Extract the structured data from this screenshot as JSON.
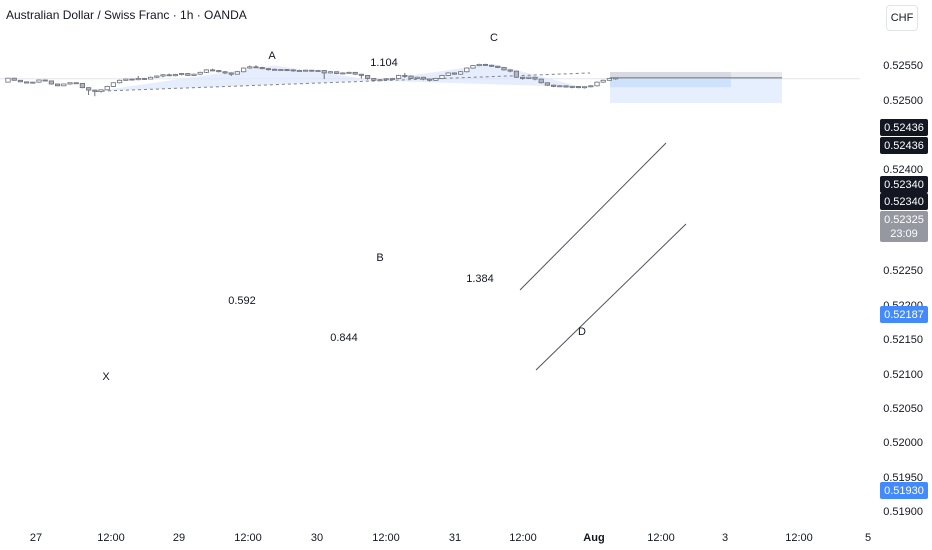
{
  "header": {
    "title": "Australian Dollar / Swiss Franc · 1h · OANDA",
    "currency_button": "CHF"
  },
  "colors": {
    "up_candle": "#ffffff",
    "down_candle": "#b2b5be",
    "candle_outline": "#6b6f7a",
    "pattern_fill": "#dbe6fb",
    "stop_zone": "#d1d4dc",
    "target_zone": "#cfe2fc",
    "label_dark": "#131722",
    "label_blue": "#2962ff"
  },
  "chart_data": {
    "type": "candlestick",
    "ylim": [
      0.5188,
      0.5262
    ],
    "price_ticks": [
      "0.52550",
      "0.52500",
      "0.52400",
      "0.52250",
      "0.52150",
      "0.52100",
      "0.52050",
      "0.52000",
      "0.51950",
      "0.51900"
    ],
    "partially_hidden_ticks": [
      "0.52200"
    ],
    "time_labels": [
      "27",
      "12:00",
      "29",
      "12:00",
      "30",
      "12:00",
      "31",
      "12:00",
      "Aug",
      "12:00",
      "3",
      "12:00",
      "5"
    ],
    "price_labels": [
      {
        "price": 0.52436,
        "text": "0.52436",
        "style": "dark"
      },
      {
        "price": 0.52436,
        "text": "0.52436",
        "style": "dark"
      },
      {
        "price": 0.5234,
        "text": "0.52340",
        "style": "dark"
      },
      {
        "price": 0.5234,
        "text": "0.52340",
        "style": "dark"
      },
      {
        "price": 0.52325,
        "text": "0.52325",
        "style": "gray",
        "countdown": "23:09"
      },
      {
        "price": 0.52187,
        "text": "0.52187",
        "style": "blue"
      },
      {
        "price": 0.5193,
        "text": "0.51930",
        "style": "blue"
      }
    ],
    "pattern_points": [
      {
        "label": "X",
        "price": 0.5212
      },
      {
        "label": "A",
        "price": 0.52544
      },
      {
        "label": "B",
        "price": 0.52295
      },
      {
        "label": "C",
        "price": 0.5257
      },
      {
        "label": "D",
        "price": 0.52188
      }
    ],
    "ratios": [
      "0.592",
      "1.104",
      "0.844",
      "1.384"
    ],
    "position": {
      "entry": 0.5234,
      "stop": 0.52436,
      "target": 0.5193
    },
    "candles": [
      [
        0.5227,
        0.52335,
        0.52268,
        0.52336
      ],
      [
        0.52335,
        0.523,
        0.52295,
        0.52338
      ],
      [
        0.523,
        0.52275,
        0.5227,
        0.52305
      ],
      [
        0.52275,
        0.52255,
        0.5225,
        0.5228
      ],
      [
        0.52255,
        0.5227,
        0.52245,
        0.52275
      ],
      [
        0.5227,
        0.52305,
        0.5226,
        0.5231
      ],
      [
        0.52305,
        0.5229,
        0.52285,
        0.5231
      ],
      [
        0.5229,
        0.5224,
        0.5223,
        0.52295
      ],
      [
        0.5224,
        0.5221,
        0.52205,
        0.52245
      ],
      [
        0.5221,
        0.5224,
        0.52205,
        0.52245
      ],
      [
        0.5224,
        0.5226,
        0.5223,
        0.52265
      ],
      [
        0.5226,
        0.5225,
        0.52245,
        0.52265
      ],
      [
        0.5225,
        0.5218,
        0.5217,
        0.52255
      ],
      [
        0.5218,
        0.5214,
        0.5206,
        0.52185
      ],
      [
        0.5214,
        0.5212,
        0.5204,
        0.5215
      ],
      [
        0.5212,
        0.52145,
        0.521,
        0.5215
      ],
      [
        0.52145,
        0.522,
        0.5214,
        0.5221
      ],
      [
        0.522,
        0.5226,
        0.5219,
        0.52265
      ],
      [
        0.5226,
        0.523,
        0.5225,
        0.5231
      ],
      [
        0.523,
        0.5232,
        0.5229,
        0.5233
      ],
      [
        0.5232,
        0.5231,
        0.523,
        0.5233
      ],
      [
        0.5231,
        0.5233,
        0.523,
        0.5237
      ],
      [
        0.5233,
        0.5232,
        0.5231,
        0.5234
      ],
      [
        0.5232,
        0.5235,
        0.52315,
        0.5236
      ],
      [
        0.5235,
        0.5237,
        0.5234,
        0.5238
      ],
      [
        0.5237,
        0.5239,
        0.5235,
        0.524
      ],
      [
        0.5239,
        0.52375,
        0.5237,
        0.5241
      ],
      [
        0.52375,
        0.52395,
        0.52365,
        0.52405
      ],
      [
        0.52395,
        0.5241,
        0.5238,
        0.5242
      ],
      [
        0.5241,
        0.5238,
        0.52375,
        0.5242
      ],
      [
        0.5238,
        0.524,
        0.5237,
        0.5241
      ],
      [
        0.524,
        0.5243,
        0.5239,
        0.5244
      ],
      [
        0.5243,
        0.5247,
        0.5242,
        0.5248
      ],
      [
        0.5247,
        0.5246,
        0.5245,
        0.5249
      ],
      [
        0.5246,
        0.5244,
        0.5243,
        0.5247
      ],
      [
        0.5244,
        0.5242,
        0.524,
        0.5245
      ],
      [
        0.5242,
        0.524,
        0.5237,
        0.5243
      ],
      [
        0.524,
        0.5244,
        0.52395,
        0.5245
      ],
      [
        0.5244,
        0.525,
        0.5243,
        0.5251
      ],
      [
        0.525,
        0.5252,
        0.5249,
        0.5254
      ],
      [
        0.5252,
        0.5251,
        0.525,
        0.52545
      ],
      [
        0.5251,
        0.5249,
        0.5248,
        0.5252
      ],
      [
        0.5249,
        0.5248,
        0.5246,
        0.525
      ],
      [
        0.5248,
        0.5247,
        0.5246,
        0.5249
      ],
      [
        0.5247,
        0.52475,
        0.5246,
        0.5248
      ],
      [
        0.52475,
        0.5247,
        0.5245,
        0.52485
      ],
      [
        0.5247,
        0.52455,
        0.5244,
        0.5248
      ],
      [
        0.52455,
        0.5246,
        0.52445,
        0.5247
      ],
      [
        0.5246,
        0.52465,
        0.5245,
        0.52475
      ],
      [
        0.52465,
        0.5245,
        0.5244,
        0.5247
      ],
      [
        0.5245,
        0.5246,
        0.5244,
        0.5247
      ],
      [
        0.5246,
        0.5242,
        0.5232,
        0.52465
      ],
      [
        0.5242,
        0.5244,
        0.5241,
        0.5245
      ],
      [
        0.5244,
        0.5241,
        0.524,
        0.52445
      ],
      [
        0.5241,
        0.5242,
        0.524,
        0.5243
      ],
      [
        0.5242,
        0.5243,
        0.5241,
        0.5244
      ],
      [
        0.5243,
        0.524,
        0.5239,
        0.52435
      ],
      [
        0.524,
        0.5238,
        0.5233,
        0.52405
      ],
      [
        0.5238,
        0.5233,
        0.5231,
        0.52385
      ],
      [
        0.5233,
        0.523,
        0.5229,
        0.52335
      ],
      [
        0.523,
        0.5231,
        0.5229,
        0.5232
      ],
      [
        0.5231,
        0.52325,
        0.52295,
        0.52335
      ],
      [
        0.52325,
        0.5233,
        0.5231,
        0.5234
      ],
      [
        0.5233,
        0.5238,
        0.5232,
        0.5239
      ],
      [
        0.5238,
        0.5237,
        0.5234,
        0.5242
      ],
      [
        0.5237,
        0.5233,
        0.5232,
        0.5238
      ],
      [
        0.5233,
        0.5235,
        0.5232,
        0.5236
      ],
      [
        0.5235,
        0.5232,
        0.523,
        0.52355
      ],
      [
        0.5232,
        0.523,
        0.5228,
        0.5233
      ],
      [
        0.523,
        0.5233,
        0.5229,
        0.5234
      ],
      [
        0.5233,
        0.5238,
        0.5232,
        0.5239
      ],
      [
        0.5238,
        0.5242,
        0.5237,
        0.5243
      ],
      [
        0.5242,
        0.524,
        0.5239,
        0.5243
      ],
      [
        0.524,
        0.5244,
        0.5239,
        0.5245
      ],
      [
        0.5244,
        0.525,
        0.5243,
        0.5251
      ],
      [
        0.525,
        0.5254,
        0.5249,
        0.5255
      ],
      [
        0.5254,
        0.5256,
        0.5253,
        0.5257
      ],
      [
        0.5256,
        0.52545,
        0.52535,
        0.5257
      ],
      [
        0.52545,
        0.5253,
        0.5252,
        0.52555
      ],
      [
        0.5253,
        0.5251,
        0.525,
        0.5254
      ],
      [
        0.5251,
        0.5247,
        0.5246,
        0.52515
      ],
      [
        0.5247,
        0.5245,
        0.5243,
        0.5248
      ],
      [
        0.5245,
        0.5235,
        0.5234,
        0.52455
      ],
      [
        0.5235,
        0.5233,
        0.5231,
        0.5236
      ],
      [
        0.5233,
        0.5235,
        0.5232,
        0.5236
      ],
      [
        0.5235,
        0.5232,
        0.523,
        0.5236
      ],
      [
        0.5232,
        0.5226,
        0.5225,
        0.52325
      ],
      [
        0.5226,
        0.5222,
        0.5221,
        0.52265
      ],
      [
        0.5222,
        0.522,
        0.5219,
        0.5223
      ],
      [
        0.522,
        0.5221,
        0.5219,
        0.5222
      ],
      [
        0.5221,
        0.5219,
        0.5218,
        0.52215
      ],
      [
        0.5219,
        0.522,
        0.5217,
        0.5221
      ],
      [
        0.522,
        0.5218,
        0.5217,
        0.52205
      ],
      [
        0.5218,
        0.52195,
        0.52165,
        0.522
      ],
      [
        0.52195,
        0.5221,
        0.52185,
        0.5222
      ],
      [
        0.5221,
        0.5227,
        0.522,
        0.5228
      ],
      [
        0.5227,
        0.523,
        0.5226,
        0.5231
      ],
      [
        0.523,
        0.5233,
        0.52295,
        0.5234
      ],
      [
        0.5233,
        0.5234,
        0.5231,
        0.52345
      ]
    ]
  }
}
